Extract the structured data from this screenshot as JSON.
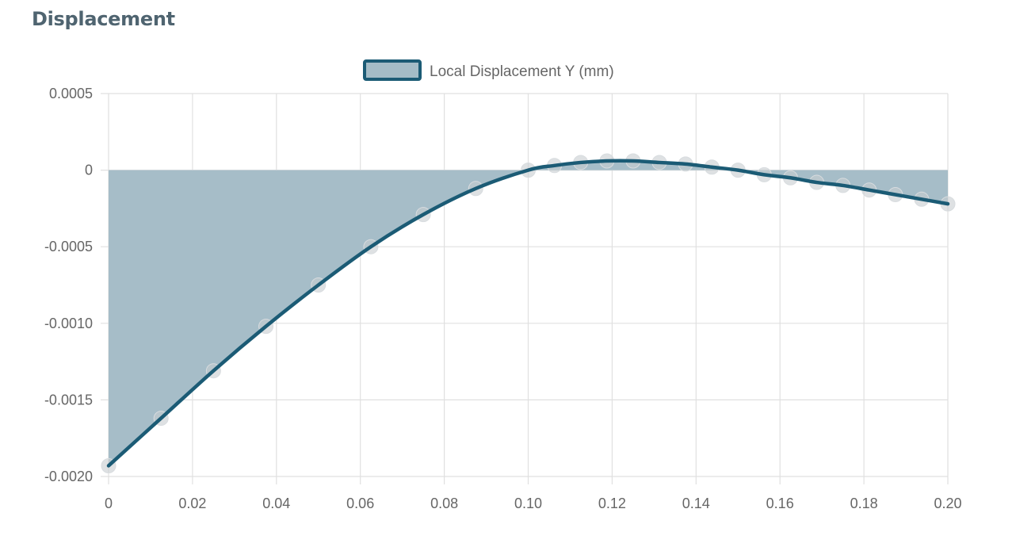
{
  "panel": {
    "title": "Displacement"
  },
  "colors": {
    "line": "#1b5b75",
    "fill": "#a4bcc7",
    "point": "#c8cdd0",
    "grid": "#e0e0e0",
    "text": "#666666"
  },
  "chart_data": {
    "type": "area",
    "legend": {
      "position": "top",
      "label": "Local Displacement Y (mm)"
    },
    "grid": true,
    "xlim": [
      0,
      0.2
    ],
    "ylim": [
      -0.002,
      0.0005
    ],
    "x_ticks": [
      "0",
      "0.02",
      "0.04",
      "0.06",
      "0.08",
      "0.10",
      "0.12",
      "0.14",
      "0.16",
      "0.18",
      "0.20"
    ],
    "y_ticks": [
      "0.0005",
      "0",
      "-0.0005",
      "-0.0010",
      "-0.0015",
      "-0.0020"
    ],
    "series": [
      {
        "name": "Local Displacement Y (mm)",
        "x": [
          0,
          0.0125,
          0.025,
          0.0375,
          0.05,
          0.0625,
          0.075,
          0.0875,
          0.1,
          0.10625,
          0.1125,
          0.11875,
          0.125,
          0.13125,
          0.1375,
          0.14375,
          0.15,
          0.15625,
          0.1625,
          0.16875,
          0.175,
          0.18125,
          0.1875,
          0.19375,
          0.2
        ],
        "y": [
          -0.00193,
          -0.00162,
          -0.00131,
          -0.00102,
          -0.00075,
          -0.0005,
          -0.00029,
          -0.00012,
          0.0,
          3e-05,
          5e-05,
          6e-05,
          6e-05,
          5e-05,
          4e-05,
          2e-05,
          0.0,
          -3e-05,
          -5e-05,
          -8e-05,
          -0.0001,
          -0.00013,
          -0.00016,
          -0.00019,
          -0.00022
        ]
      }
    ]
  }
}
